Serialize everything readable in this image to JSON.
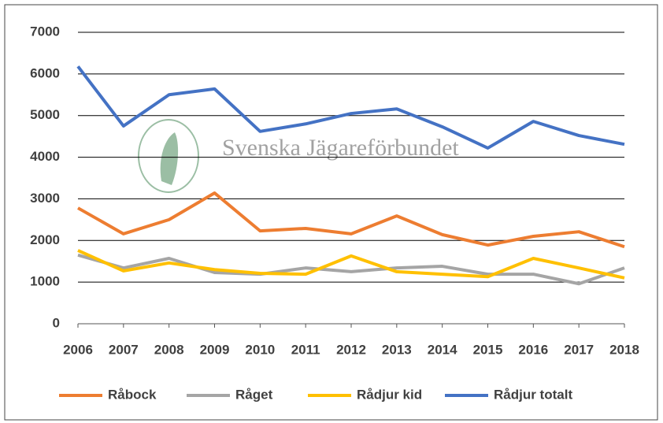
{
  "chart_data": {
    "type": "line",
    "categories": [
      "2006",
      "2007",
      "2008",
      "2009",
      "2010",
      "2011",
      "2012",
      "2013",
      "2014",
      "2015",
      "2016",
      "2017",
      "2018"
    ],
    "series": [
      {
        "name": "Råbock",
        "color": "#ed7d31",
        "values": [
          2780,
          2160,
          2500,
          3140,
          2230,
          2290,
          2160,
          2590,
          2140,
          1890,
          2100,
          2210,
          1850
        ]
      },
      {
        "name": "Råget",
        "color": "#a5a5a5",
        "values": [
          1650,
          1340,
          1570,
          1230,
          1190,
          1340,
          1250,
          1340,
          1380,
          1190,
          1190,
          960,
          1340
        ]
      },
      {
        "name": "Rådjur kid",
        "color": "#ffc000",
        "values": [
          1760,
          1270,
          1460,
          1300,
          1210,
          1190,
          1630,
          1250,
          1190,
          1130,
          1570,
          1340,
          1100
        ]
      },
      {
        "name": "Rådjur totalt",
        "color": "#4472c4",
        "values": [
          6180,
          4750,
          5500,
          5640,
          4620,
          4800,
          5050,
          5160,
          4730,
          4220,
          4860,
          4520,
          4310
        ]
      }
    ],
    "ylim": [
      0,
      7000
    ],
    "yticks": [
      0,
      1000,
      2000,
      3000,
      4000,
      5000,
      6000,
      7000
    ],
    "grid": true,
    "annotation": "Svenska Jägareförbundet"
  }
}
